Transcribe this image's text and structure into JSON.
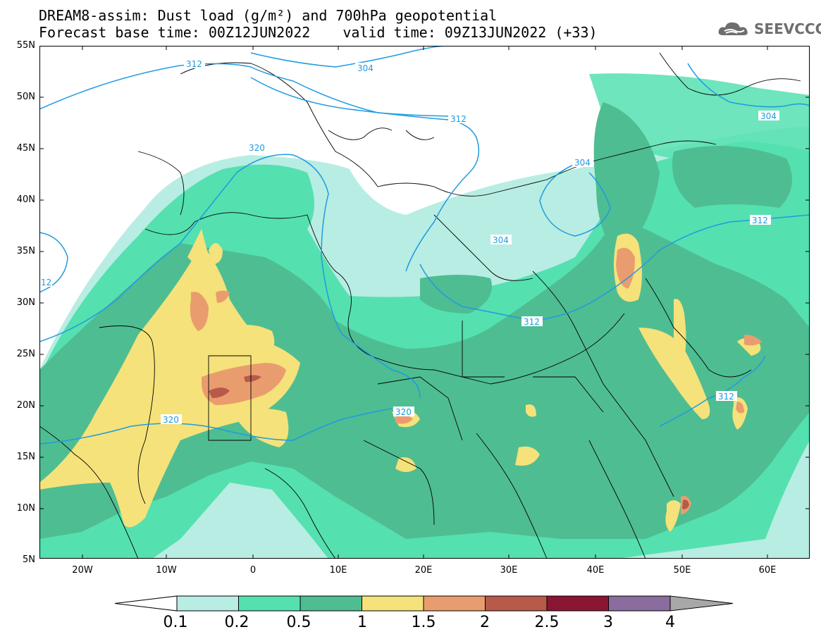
{
  "title": {
    "line1": "DREAM8-assim: Dust load (g/m²) and 700hPa geopotential",
    "line2_left": "Forecast base time: 00Z12JUN2022",
    "line2_right": "valid time: 09Z13JUN2022 (+33)"
  },
  "logo": {
    "text": "SEEVCCC"
  },
  "latitude_labels": [
    "55N",
    "50N",
    "45N",
    "40N",
    "35N",
    "30N",
    "25N",
    "20N",
    "15N",
    "10N",
    "5N"
  ],
  "longitude_labels": [
    "20W",
    "10W",
    "0",
    "10E",
    "20E",
    "30E",
    "40E",
    "50E",
    "60E"
  ],
  "contour_labels": {
    "c312a": "312",
    "c304a": "304",
    "c312b": "312",
    "c304b": "304",
    "c320a": "320",
    "c304c": "304",
    "c304d": "304",
    "c312c": "312",
    "c12": "12",
    "c312d": "312",
    "c320b": "320",
    "c320c": "320",
    "c312e": "312"
  },
  "colorbar": {
    "labels": [
      "0.1",
      "0.2",
      "0.5",
      "1",
      "1.5",
      "2",
      "2.5",
      "3",
      "4"
    ],
    "colors": [
      "#b8ede3",
      "#55e0b0",
      "#4fbd92",
      "#f5e27a",
      "#e99d6f",
      "#b85a4a",
      "#8a1634",
      "#8a6d9e"
    ],
    "under_color": "#ffffff",
    "over_color": "#a8a8a8"
  },
  "palette": {
    "c01": "#b8ede3",
    "c02": "#55e0b0",
    "c05": "#4fbd92",
    "c1": "#f5e27a",
    "c15": "#e99d6f",
    "c2": "#b85a4a",
    "contour": "#1e9be0"
  }
}
